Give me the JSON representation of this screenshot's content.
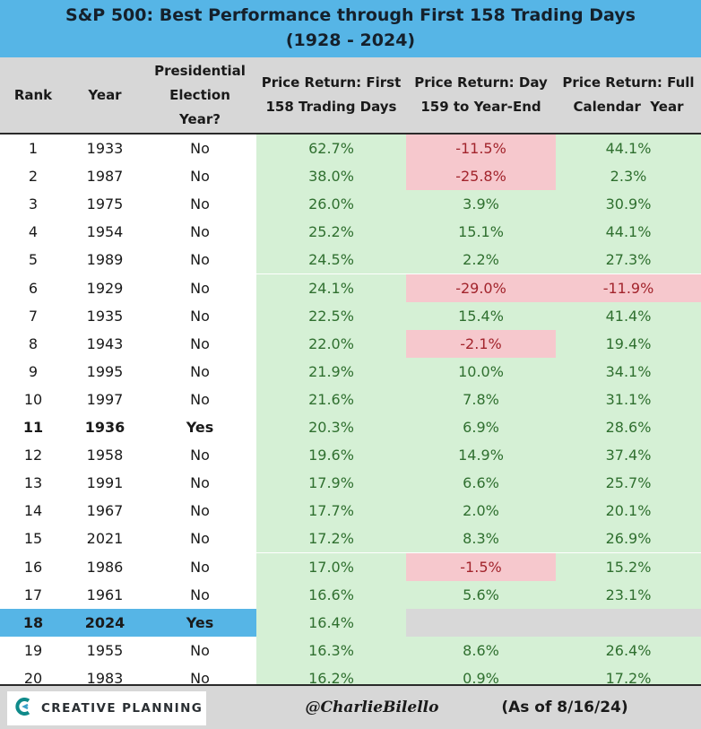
{
  "title": {
    "line1": "S&P 500: Best Performance through First 158 Trading Days",
    "line2": "(1928 - 2024)"
  },
  "headers": {
    "rank": "Rank",
    "year": "Year",
    "election": [
      "Presidential",
      "Election",
      "Year?"
    ],
    "first158": [
      "Price Return: First",
      "158 Trading Days"
    ],
    "day159": [
      "Price Return: Day",
      "159 to Year-End"
    ],
    "full": [
      "Price Return: Full",
      "Calendar  Year"
    ]
  },
  "chart_data": {
    "type": "table",
    "title": "S&P 500: Best Performance through First 158 Trading Days (1928 - 2024)",
    "columns": [
      "Rank",
      "Year",
      "Presidential Election Year?",
      "Price Return: First 158 Trading Days",
      "Price Return: Day 159 to Year-End",
      "Price Return: Full Calendar  Year"
    ],
    "rows": [
      {
        "rank": "1",
        "year": "1933",
        "election": "No",
        "first": "62.7%",
        "day159": "-11.5%",
        "full": "44.1%"
      },
      {
        "rank": "2",
        "year": "1987",
        "election": "No",
        "first": "38.0%",
        "day159": "-25.8%",
        "full": "2.3%"
      },
      {
        "rank": "3",
        "year": "1975",
        "election": "No",
        "first": "26.0%",
        "day159": "3.9%",
        "full": "30.9%"
      },
      {
        "rank": "4",
        "year": "1954",
        "election": "No",
        "first": "25.2%",
        "day159": "15.1%",
        "full": "44.1%"
      },
      {
        "rank": "5",
        "year": "1989",
        "election": "No",
        "first": "24.5%",
        "day159": "2.2%",
        "full": "27.3%"
      },
      {
        "rank": "6",
        "year": "1929",
        "election": "No",
        "first": "24.1%",
        "day159": "-29.0%",
        "full": "-11.9%"
      },
      {
        "rank": "7",
        "year": "1935",
        "election": "No",
        "first": "22.5%",
        "day159": "15.4%",
        "full": "41.4%"
      },
      {
        "rank": "8",
        "year": "1943",
        "election": "No",
        "first": "22.0%",
        "day159": "-2.1%",
        "full": "19.4%"
      },
      {
        "rank": "9",
        "year": "1995",
        "election": "No",
        "first": "21.9%",
        "day159": "10.0%",
        "full": "34.1%"
      },
      {
        "rank": "10",
        "year": "1997",
        "election": "No",
        "first": "21.6%",
        "day159": "7.8%",
        "full": "31.1%"
      },
      {
        "rank": "11",
        "year": "1936",
        "election": "Yes",
        "first": "20.3%",
        "day159": "6.9%",
        "full": "28.6%"
      },
      {
        "rank": "12",
        "year": "1958",
        "election": "No",
        "first": "19.6%",
        "day159": "14.9%",
        "full": "37.4%"
      },
      {
        "rank": "13",
        "year": "1991",
        "election": "No",
        "first": "17.9%",
        "day159": "6.6%",
        "full": "25.7%"
      },
      {
        "rank": "14",
        "year": "1967",
        "election": "No",
        "first": "17.7%",
        "day159": "2.0%",
        "full": "20.1%"
      },
      {
        "rank": "15",
        "year": "2021",
        "election": "No",
        "first": "17.2%",
        "day159": "8.3%",
        "full": "26.9%"
      },
      {
        "rank": "16",
        "year": "1986",
        "election": "No",
        "first": "17.0%",
        "day159": "-1.5%",
        "full": "15.2%"
      },
      {
        "rank": "17",
        "year": "1961",
        "election": "No",
        "first": "16.6%",
        "day159": "5.6%",
        "full": "23.1%"
      },
      {
        "rank": "18",
        "year": "2024",
        "election": "Yes",
        "first": "16.4%",
        "day159": "",
        "full": "",
        "highlight": true
      },
      {
        "rank": "19",
        "year": "1955",
        "election": "No",
        "first": "16.3%",
        "day159": "8.6%",
        "full": "26.4%"
      },
      {
        "rank": "20",
        "year": "1983",
        "election": "No",
        "first": "16.2%",
        "day159": "0.9%",
        "full": "17.2%"
      }
    ]
  },
  "colors": {
    "title_bg": "#56b5e6",
    "header_bg": "#d7d7d7",
    "positive_bg": "#d5f0d5",
    "positive_text": "#2f6f2f",
    "negative_bg": "#f6c8cd",
    "negative_text": "#a2242c",
    "highlight_row": "#56b5e6"
  },
  "footer": {
    "brand": "CREATIVE PLANNING",
    "brand_icon": "creative-planning-logo-icon",
    "handle": "@CharlieBilello",
    "as_of": "(As of 8/16/24)"
  }
}
